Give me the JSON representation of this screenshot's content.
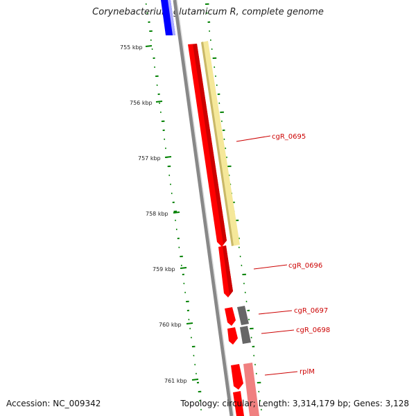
{
  "title": "Corynebacterium glutamicum R, complete genome",
  "footer": {
    "accession": "Accession: NC_009342",
    "topology": "Topology: circular; Length: 3,314,179 bp; Genes: 3,128"
  },
  "ticks": [
    "755 kbp",
    "756 kbp",
    "757 kbp",
    "758 kbp",
    "759 kbp",
    "760 kbp",
    "761 kbp"
  ],
  "gene_labels": [
    "cgR_0695",
    "cgR_0696",
    "cgR_0697",
    "cgR_0698",
    "rplM"
  ],
  "colors": {
    "forward_cds": "#ff0000",
    "feature_yellow": "#f5e89a",
    "gray_feature": "#666666",
    "blue_feature": "#0000ff",
    "pink_feature": "#f08080",
    "backbone": "#888888",
    "gc_ticks": "#008000",
    "label_line": "#cc0000"
  }
}
